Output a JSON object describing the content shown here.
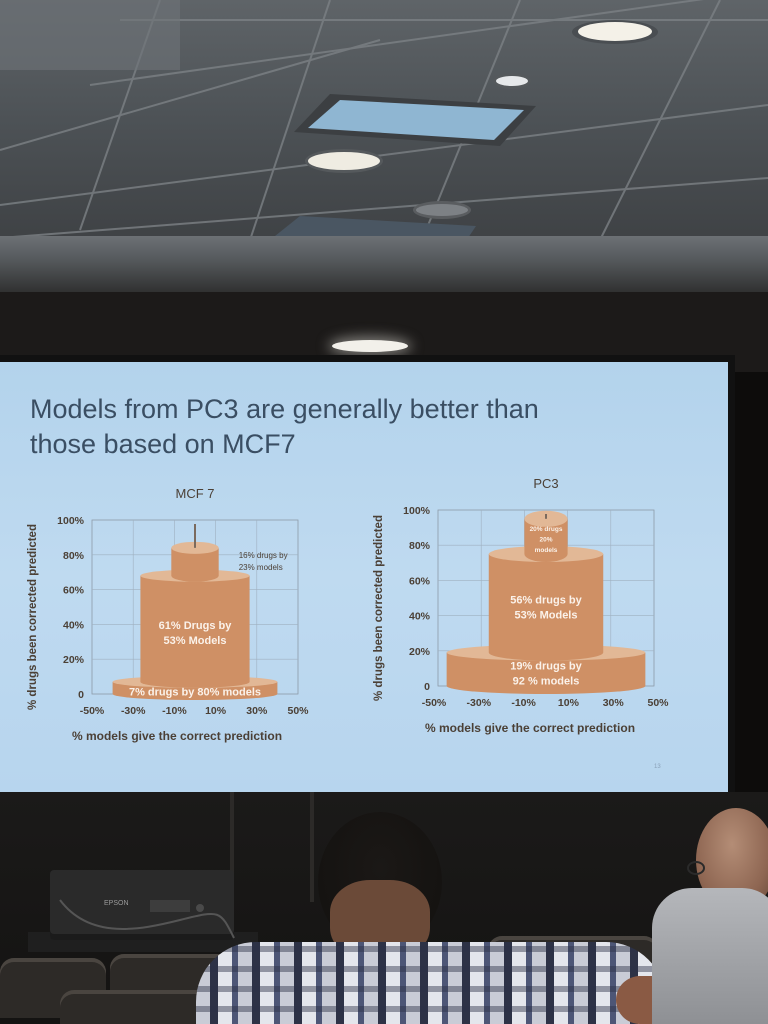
{
  "slide": {
    "title_line1": "Models from PC3 are generally better than",
    "title_line2": "those based on MCF7",
    "page_number": "13"
  },
  "equipment": {
    "projector_label": "EPSON"
  },
  "colors": {
    "slide_background": "#b8d6ee",
    "title_text": "#3a4e63",
    "tier_fill": "#cf9065",
    "tier_top": "#e2b896",
    "tier_label": "#fbf2ea",
    "axis_text": "#4b4036"
  },
  "chart_data": [
    {
      "type": "other",
      "title": "MCF 7",
      "xlabel": "% models give the correct prediction",
      "ylabel": "% drugs been corrected predicted",
      "x_ticks": [
        "-50%",
        "-30%",
        "-10%",
        "10%",
        "30%",
        "50%"
      ],
      "y_ticks": [
        "0",
        "20%",
        "40%",
        "60%",
        "80%",
        "100%"
      ],
      "xlim": [
        -50,
        50
      ],
      "ylim": [
        0,
        100
      ],
      "grid": true,
      "tiers": [
        {
          "drugs_pct": 7,
          "models_pct": 80,
          "label_lines": [
            "7% drugs by 80% models"
          ],
          "label_position": "inside"
        },
        {
          "drugs_pct": 61,
          "models_pct": 53,
          "label_lines": [
            "61% Drugs by",
            "53% Models"
          ],
          "label_position": "inside"
        },
        {
          "drugs_pct": 16,
          "models_pct": 23,
          "label_lines": [
            "16% drugs by",
            "23% models"
          ],
          "label_position": "right"
        }
      ]
    },
    {
      "type": "other",
      "title": "PC3",
      "xlabel": "% models give the correct prediction",
      "ylabel": "% drugs been corrected predicted",
      "x_ticks": [
        "-50%",
        "-30%",
        "-10%",
        "10%",
        "30%",
        "50%"
      ],
      "y_ticks": [
        "0",
        "20%",
        "40%",
        "60%",
        "80%",
        "100%"
      ],
      "xlim": [
        -50,
        50
      ],
      "ylim": [
        0,
        100
      ],
      "grid": true,
      "tiers": [
        {
          "drugs_pct": 19,
          "models_pct": 92,
          "label_lines": [
            "19% drugs by",
            "92 % models"
          ],
          "label_position": "inside"
        },
        {
          "drugs_pct": 56,
          "models_pct": 53,
          "label_lines": [
            "56% drugs by",
            "53% Models"
          ],
          "label_position": "inside"
        },
        {
          "drugs_pct": 20,
          "models_pct": 20,
          "label_lines": [
            "20% drugs",
            "20%",
            "models"
          ],
          "label_position": "inside"
        }
      ]
    }
  ]
}
